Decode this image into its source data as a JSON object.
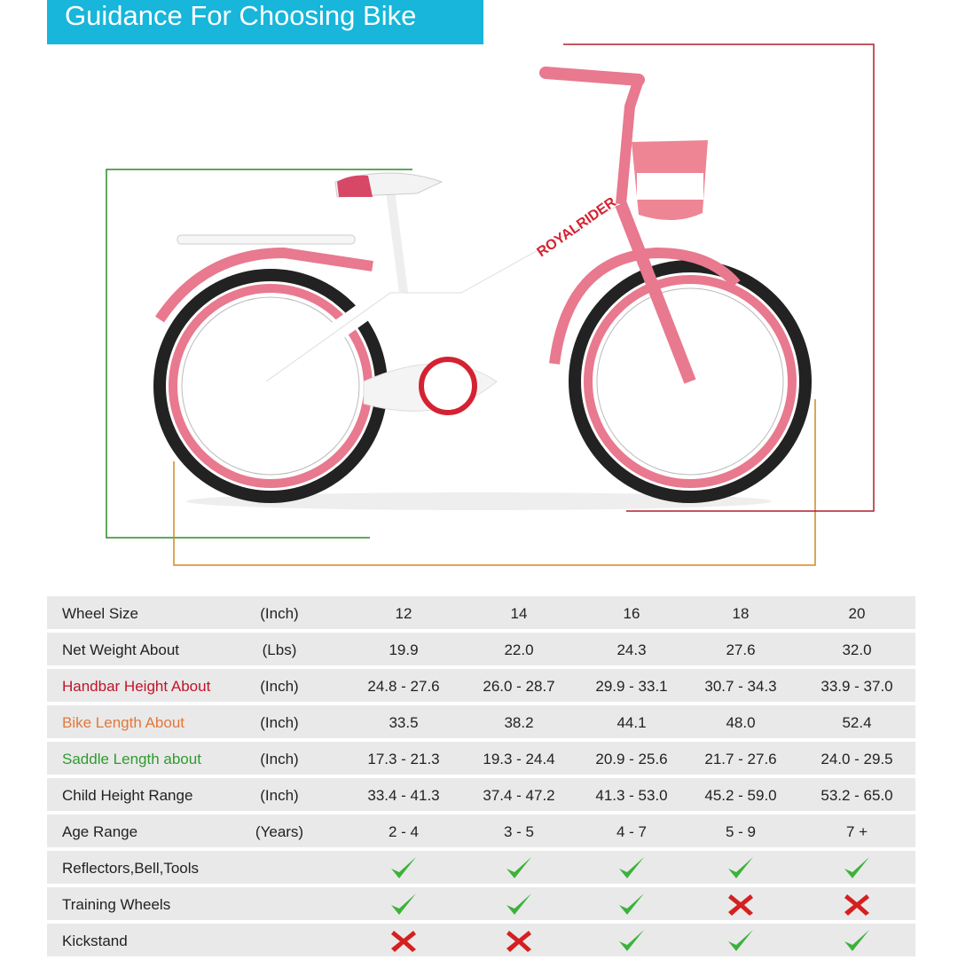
{
  "header": {
    "title": "Guidance For Choosing Bike"
  },
  "table": {
    "rows": [
      {
        "label": "Wheel Size",
        "unit": "(Inch)",
        "values": [
          "12",
          "14",
          "16",
          "18",
          "20"
        ]
      },
      {
        "label": "Net Weight About",
        "unit": "(Lbs)",
        "values": [
          "19.9",
          "22.0",
          "24.3",
          "27.6",
          "32.0"
        ]
      },
      {
        "label": "Handbar Height About",
        "unit": "(Inch)",
        "color": "#c0142b",
        "values": [
          "24.8 - 27.6",
          "26.0 - 28.7",
          "29.9 - 33.1",
          "30.7 - 34.3",
          "33.9 - 37.0"
        ]
      },
      {
        "label": "Bike Length About",
        "unit": "(Inch)",
        "color": "#e4773b",
        "values": [
          "33.5",
          "38.2",
          "44.1",
          "48.0",
          "52.4"
        ]
      },
      {
        "label": "Saddle Length about",
        "unit": "(Inch)",
        "color": "#2e9b2e",
        "values": [
          "17.3 - 21.3",
          "19.3 - 24.4",
          "20.9 - 25.6",
          "21.7 - 27.6",
          "24.0 - 29.5"
        ]
      },
      {
        "label": "Child Height Range",
        "unit": "(Inch)",
        "values": [
          "33.4 - 41.3",
          "37.4 - 47.2",
          "41.3 - 53.0",
          "45.2 - 59.0",
          "53.2 - 65.0"
        ]
      },
      {
        "label": "Age Range",
        "unit": "(Years)",
        "values": [
          "2 - 4",
          "3 - 5",
          "4 - 7",
          "5 - 9",
          "7 +"
        ]
      },
      {
        "label": "Reflectors,Bell,Tools",
        "values": [
          true,
          true,
          true,
          true,
          true
        ]
      },
      {
        "label": "Training Wheels",
        "values": [
          true,
          true,
          true,
          false,
          false
        ]
      },
      {
        "label": "Kickstand",
        "values": [
          false,
          false,
          true,
          true,
          true
        ]
      }
    ]
  }
}
